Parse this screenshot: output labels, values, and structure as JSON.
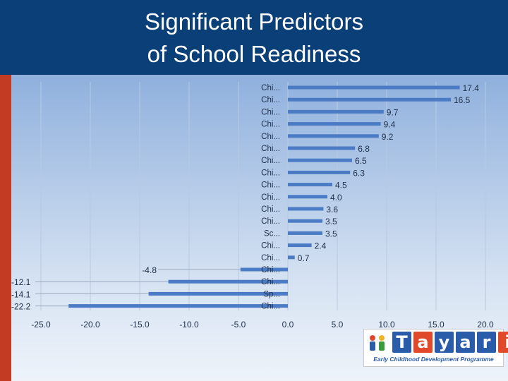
{
  "slide": {
    "title_line1": "Significant Predictors",
    "title_line2": "of School Readiness"
  },
  "logo": {
    "letters": [
      "T",
      "a",
      "y",
      "a",
      "r",
      "i"
    ],
    "tagline": "Early Childhood Development Programme"
  },
  "colors": {
    "bar": "#4a7bc4",
    "header": "#0b3f78",
    "sidebar": "#c23b22"
  },
  "chart_data": {
    "type": "bar",
    "orientation": "horizontal",
    "categories": [
      "Chi...",
      "Chi...",
      "Chi...",
      "Chi...",
      "Chi...",
      "Chi...",
      "Chi...",
      "Chi...",
      "Chi...",
      "Chi...",
      "Chi...",
      "Chi...",
      "Sc...",
      "Chi...",
      "Chi...",
      "Chi...",
      "Chi...",
      "Sp...",
      "Chi..."
    ],
    "values": [
      17.4,
      16.5,
      9.7,
      9.4,
      9.2,
      6.8,
      6.5,
      6.3,
      4.5,
      4.0,
      3.6,
      3.5,
      3.5,
      2.4,
      0.7,
      -4.8,
      -12.1,
      -14.1,
      -22.2
    ],
    "data_labels": [
      "17.4",
      "16.5",
      "9.7",
      "9.4",
      "9.2",
      "6.8",
      "6.5",
      "6.3",
      "4.5",
      "4.0",
      "3.6",
      "3.5",
      "3.5",
      "2.4",
      "0.7",
      "-4.8",
      "-12.1",
      "-14.1",
      "-22.2"
    ],
    "xlim": [
      -25,
      20
    ],
    "x_ticks": [
      -25,
      -20,
      -15,
      -10,
      -5,
      0,
      5,
      10,
      15,
      20
    ],
    "x_tick_labels": [
      "-25.0",
      "-20.0",
      "-15.0",
      "-10.0",
      "-5.0",
      "0.0",
      "5.0",
      "10.0",
      "15.0",
      "20.0"
    ],
    "grid": true,
    "legend": "none"
  }
}
